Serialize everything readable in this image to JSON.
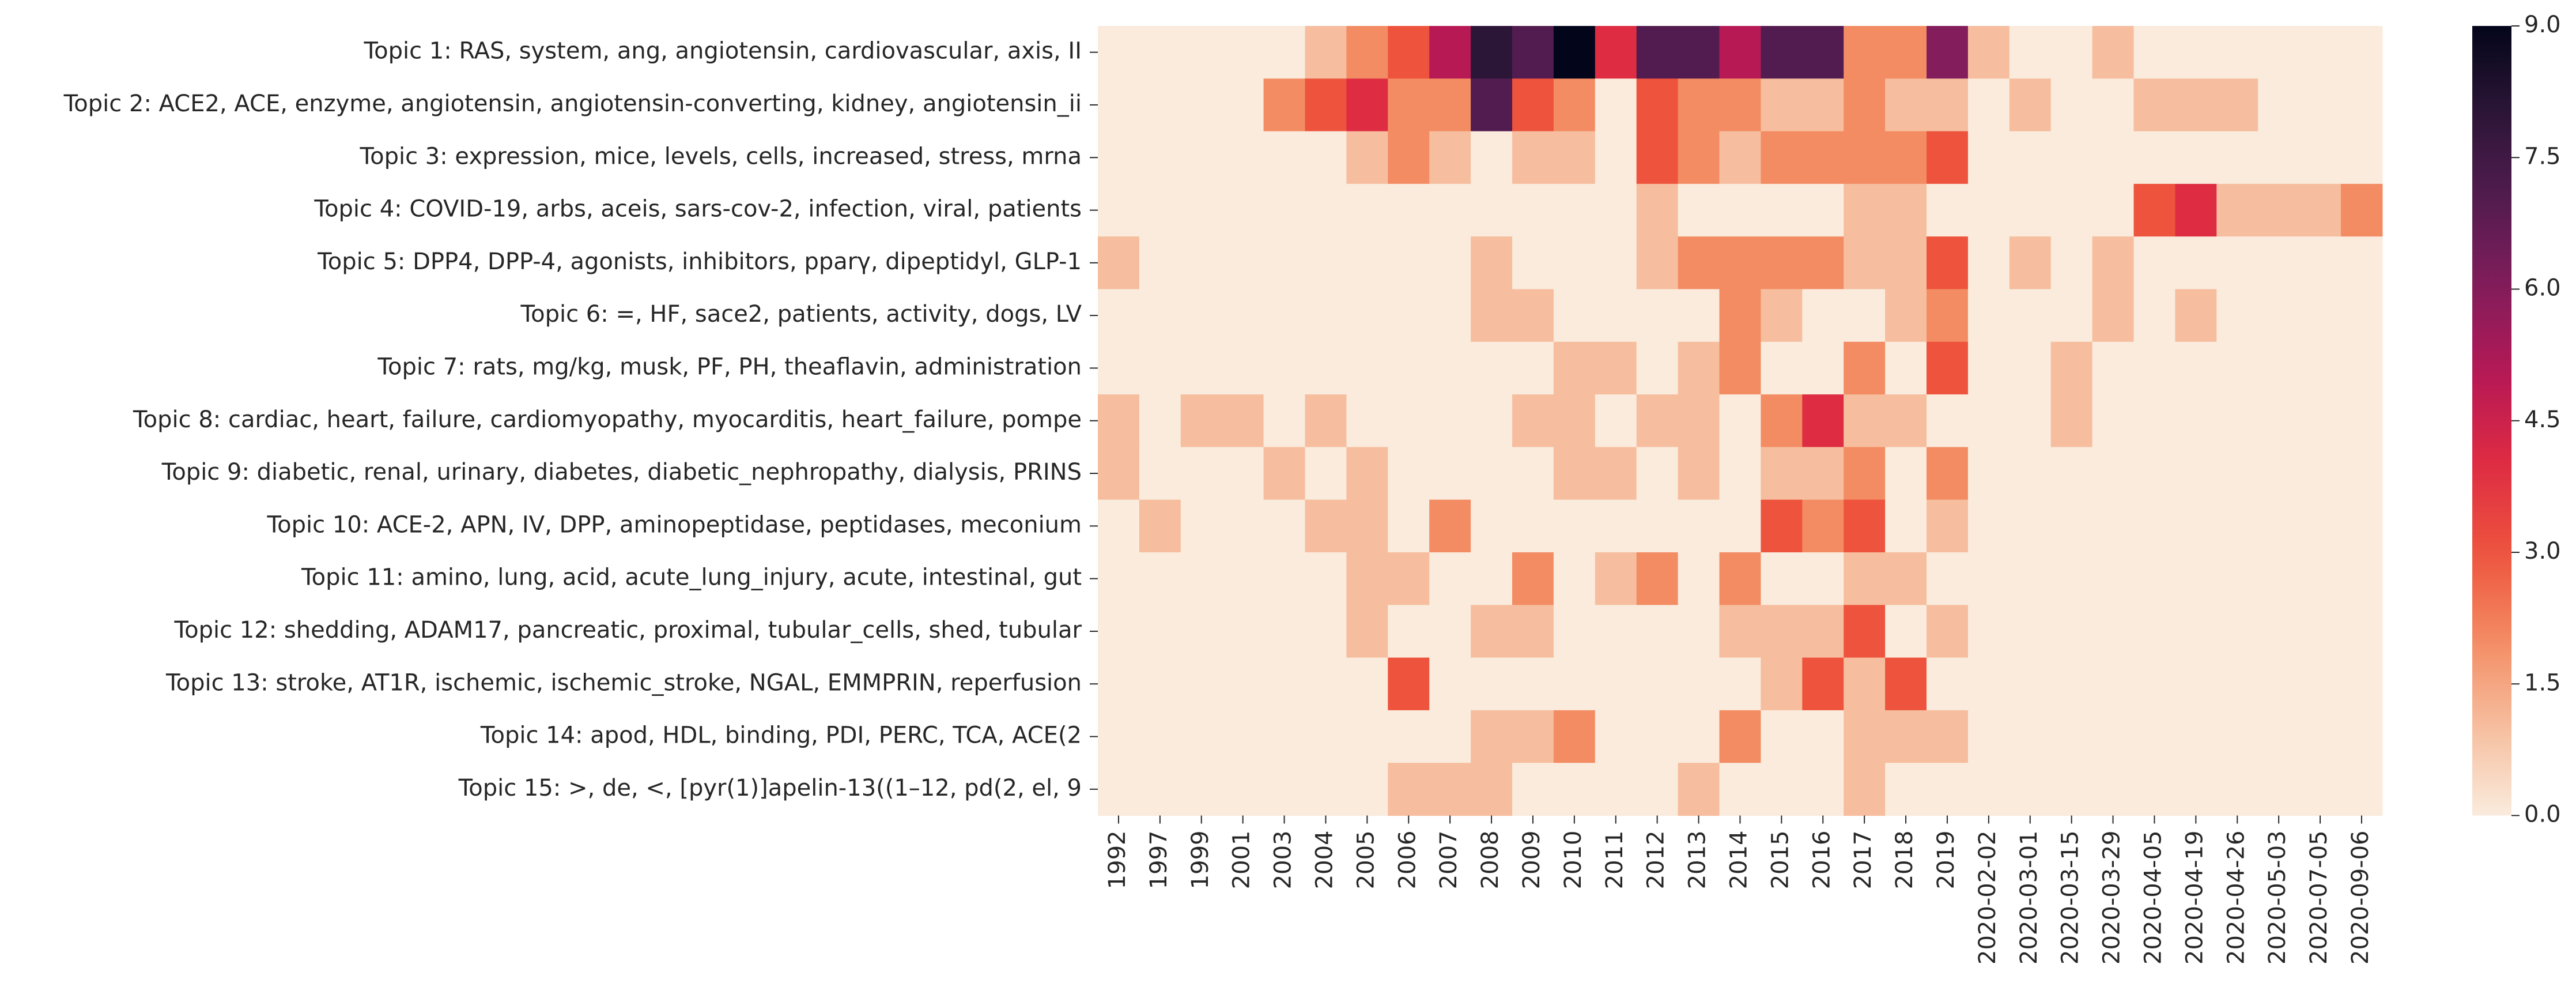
{
  "chart_data": {
    "type": "heatmap",
    "colormap": "rocket_r",
    "colorbar": {
      "min": 0,
      "max": 9,
      "ticks": [
        "0.0",
        "1.5",
        "3.0",
        "4.5",
        "6.0",
        "7.5",
        "9.0"
      ]
    },
    "x": [
      "1992",
      "1997",
      "1999",
      "2001",
      "2003",
      "2004",
      "2005",
      "2006",
      "2007",
      "2008",
      "2009",
      "2010",
      "2011",
      "2012",
      "2013",
      "2014",
      "2015",
      "2016",
      "2017",
      "2018",
      "2019",
      "2020-02-02",
      "2020-03-01",
      "2020-03-15",
      "2020-03-29",
      "2020-04-05",
      "2020-04-19",
      "2020-04-26",
      "2020-05-03",
      "2020-07-05",
      "2020-09-06"
    ],
    "y": [
      "Topic 1: RAS, system, ang, angiotensin, cardiovascular, axis, II",
      "Topic 2: ACE2, ACE, enzyme, angiotensin, angiotensin-converting, kidney, angiotensin_ii",
      "Topic 3: expression, mice, levels, cells, increased, stress, mrna",
      "Topic 4: COVID-19, arbs, aceis, sars-cov-2, infection, viral, patients",
      "Topic 5: DPP4, DPP-4, agonists, inhibitors, pparγ, dipeptidyl, GLP-1",
      "Topic 6: =, HF, sace2, patients, activity, dogs, LV",
      "Topic 7: rats, mg/kg, musk, PF, PH, theaflavin, administration",
      "Topic 8: cardiac, heart, failure, cardiomyopathy, myocarditis, heart_failure, pompe",
      "Topic 9: diabetic, renal, urinary, diabetes, diabetic_nephropathy, dialysis, PRINS",
      "Topic 10: ACE-2, APN, IV, DPP, aminopeptidase, peptidases, meconium",
      "Topic 11: amino, lung, acid, acute_lung_injury, acute, intestinal, gut",
      "Topic 12: shedding, ADAM17, pancreatic, proximal, tubular_cells, shed, tubular",
      "Topic 13: stroke, AT1R, ischemic, ischemic_stroke, NGAL, EMMPRIN, reperfusion",
      "Topic 14: apod, HDL, binding, PDI, PERC, TCA, ACE(2",
      "Topic 15: >, de, <, [pyr(1)]apelin-13((1–12, pd(2, el, 9"
    ],
    "values": [
      [
        0,
        0,
        0,
        0,
        0,
        1,
        2,
        3,
        5,
        8,
        7,
        9,
        4,
        7,
        7,
        5,
        7,
        7,
        2,
        2,
        6,
        1,
        0,
        0,
        1,
        0,
        0,
        0,
        0,
        0,
        0
      ],
      [
        0,
        0,
        0,
        0,
        2,
        3,
        4,
        2,
        2,
        7,
        3,
        2,
        0,
        3,
        2,
        2,
        1,
        1,
        2,
        1,
        1,
        0,
        1,
        0,
        0,
        1,
        1,
        1,
        0,
        0,
        0
      ],
      [
        0,
        0,
        0,
        0,
        0,
        0,
        1,
        2,
        1,
        0,
        1,
        1,
        0,
        3,
        2,
        1,
        2,
        2,
        2,
        2,
        3,
        0,
        0,
        0,
        0,
        0,
        0,
        0,
        0,
        0,
        0
      ],
      [
        0,
        0,
        0,
        0,
        0,
        0,
        0,
        0,
        0,
        0,
        0,
        0,
        0,
        1,
        0,
        0,
        0,
        0,
        1,
        1,
        0,
        0,
        0,
        0,
        0,
        3,
        4,
        1,
        1,
        1,
        2
      ],
      [
        1,
        0,
        0,
        0,
        0,
        0,
        0,
        0,
        0,
        1,
        0,
        0,
        0,
        1,
        2,
        2,
        2,
        2,
        1,
        1,
        3,
        0,
        1,
        0,
        1,
        0,
        0,
        0,
        0,
        0,
        0
      ],
      [
        0,
        0,
        0,
        0,
        0,
        0,
        0,
        0,
        0,
        1,
        1,
        0,
        0,
        0,
        0,
        2,
        1,
        0,
        0,
        1,
        2,
        0,
        0,
        0,
        1,
        0,
        1,
        0,
        0,
        0,
        0
      ],
      [
        0,
        0,
        0,
        0,
        0,
        0,
        0,
        0,
        0,
        0,
        0,
        1,
        1,
        0,
        1,
        2,
        0,
        0,
        2,
        0,
        3,
        0,
        0,
        1,
        0,
        0,
        0,
        0,
        0,
        0,
        0
      ],
      [
        1,
        0,
        1,
        1,
        0,
        1,
        0,
        0,
        0,
        0,
        1,
        1,
        0,
        1,
        1,
        0,
        2,
        4,
        1,
        1,
        0,
        0,
        0,
        1,
        0,
        0,
        0,
        0,
        0,
        0,
        0
      ],
      [
        1,
        0,
        0,
        0,
        1,
        0,
        1,
        0,
        0,
        0,
        0,
        1,
        1,
        0,
        1,
        0,
        1,
        1,
        2,
        0,
        2,
        0,
        0,
        0,
        0,
        0,
        0,
        0,
        0,
        0,
        0
      ],
      [
        0,
        1,
        0,
        0,
        0,
        1,
        1,
        0,
        2,
        0,
        0,
        0,
        0,
        0,
        0,
        0,
        3,
        2,
        3,
        0,
        1,
        0,
        0,
        0,
        0,
        0,
        0,
        0,
        0,
        0,
        0
      ],
      [
        0,
        0,
        0,
        0,
        0,
        0,
        1,
        1,
        0,
        0,
        2,
        0,
        1,
        2,
        0,
        2,
        0,
        0,
        1,
        1,
        0,
        0,
        0,
        0,
        0,
        0,
        0,
        0,
        0,
        0,
        0
      ],
      [
        0,
        0,
        0,
        0,
        0,
        0,
        1,
        0,
        0,
        1,
        1,
        0,
        0,
        0,
        0,
        1,
        1,
        1,
        3,
        0,
        1,
        0,
        0,
        0,
        0,
        0,
        0,
        0,
        0,
        0,
        0
      ],
      [
        0,
        0,
        0,
        0,
        0,
        0,
        0,
        3,
        0,
        0,
        0,
        0,
        0,
        0,
        0,
        0,
        1,
        3,
        1,
        3,
        0,
        0,
        0,
        0,
        0,
        0,
        0,
        0,
        0,
        0,
        0
      ],
      [
        0,
        0,
        0,
        0,
        0,
        0,
        0,
        0,
        0,
        1,
        1,
        2,
        0,
        0,
        0,
        2,
        0,
        0,
        1,
        1,
        1,
        0,
        0,
        0,
        0,
        0,
        0,
        0,
        0,
        0,
        0
      ],
      [
        0,
        0,
        0,
        0,
        0,
        0,
        0,
        1,
        1,
        1,
        0,
        0,
        0,
        0,
        1,
        0,
        0,
        0,
        1,
        0,
        0,
        0,
        0,
        0,
        0,
        0,
        0,
        0,
        0,
        0,
        0
      ]
    ]
  }
}
